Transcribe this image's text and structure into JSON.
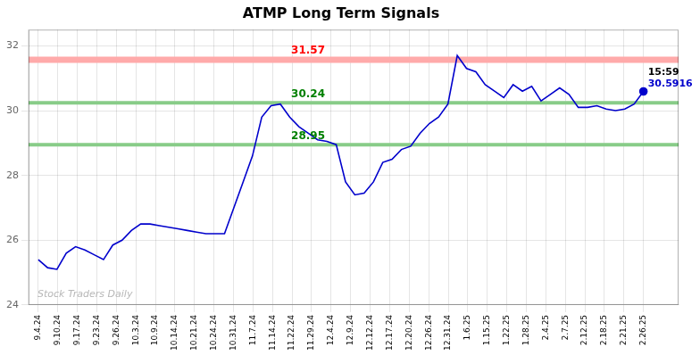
{
  "chart_data": {
    "type": "line",
    "title": "ATMP Long Term Signals",
    "x": [
      0,
      0.476923,
      0.953846,
      1.430769,
      1.907692,
      2.384615,
      2.861538,
      3.338462,
      3.815385,
      4.292308,
      4.769231,
      5.246154,
      5.723077,
      6.2,
      6.676923,
      7.153846,
      7.630769,
      8.107692,
      8.584615,
      9.061538,
      9.538462,
      10.015385,
      10.492308,
      10.969231,
      11.446154,
      11.923077,
      12.4,
      12.876923,
      13.353846,
      13.830769,
      14.307692,
      14.784615,
      15.261538,
      15.738462,
      16.215385,
      16.692308,
      17.169231,
      17.646154,
      18.123077,
      18.6,
      19.076923,
      19.553846,
      20.030769,
      20.507692,
      20.984615,
      21.461538,
      21.938462,
      22.415385,
      22.892308,
      23.369231,
      23.846154,
      24.323077,
      24.8,
      25.276923,
      25.753846,
      26.230769,
      26.707692,
      27.184615,
      27.661538,
      28.138462,
      28.615385,
      29.092308,
      29.569231,
      30.046154,
      30.523077,
      31
    ],
    "series": [
      {
        "color": "#0000cc",
        "values": [
          25.4,
          25.15,
          25.1,
          25.6,
          25.8,
          25.7,
          25.55,
          25.4,
          25.85,
          26.0,
          26.3,
          26.5,
          26.5,
          26.45,
          26.4,
          26.35,
          26.3,
          26.25,
          26.2,
          26.2,
          26.2,
          27.0,
          27.8,
          28.6,
          29.8,
          30.15,
          30.2,
          29.8,
          29.5,
          29.3,
          29.1,
          29.05,
          28.95,
          27.8,
          27.4,
          27.45,
          27.8,
          28.4,
          28.5,
          28.8,
          28.9,
          29.3,
          29.6,
          29.8,
          30.2,
          31.7,
          31.3,
          31.2,
          30.8,
          30.6,
          30.4,
          30.8,
          30.6,
          30.75,
          30.3,
          30.5,
          30.7,
          30.5,
          30.1,
          30.1,
          30.15,
          30.05,
          30.0,
          30.05,
          30.2,
          30.5916
        ]
      }
    ],
    "xlim": [
      -0.5,
      32.8
    ],
    "xticks": [
      {
        "value": 0,
        "label": "9.4.24"
      },
      {
        "value": 1,
        "label": "9.10.24"
      },
      {
        "value": 2,
        "label": "9.17.24"
      },
      {
        "value": 3,
        "label": "9.23.24"
      },
      {
        "value": 4,
        "label": "9.26.24"
      },
      {
        "value": 5,
        "label": "10.3.24"
      },
      {
        "value": 6,
        "label": "10.9.24"
      },
      {
        "value": 7,
        "label": "10.14.24"
      },
      {
        "value": 8,
        "label": "10.21.24"
      },
      {
        "value": 9,
        "label": "10.24.24"
      },
      {
        "value": 10,
        "label": "10.31.24"
      },
      {
        "value": 11,
        "label": "11.7.24"
      },
      {
        "value": 12,
        "label": "11.14.24"
      },
      {
        "value": 13,
        "label": "11.22.24"
      },
      {
        "value": 14,
        "label": "11.29.24"
      },
      {
        "value": 15,
        "label": "12.4.24"
      },
      {
        "value": 16,
        "label": "12.9.24"
      },
      {
        "value": 17,
        "label": "12.12.24"
      },
      {
        "value": 18,
        "label": "12.17.24"
      },
      {
        "value": 19,
        "label": "12.20.24"
      },
      {
        "value": 20,
        "label": "12.26.24"
      },
      {
        "value": 21,
        "label": "12.31.24"
      },
      {
        "value": 22,
        "label": "1.6.25"
      },
      {
        "value": 23,
        "label": "1.15.25"
      },
      {
        "value": 24,
        "label": "1.22.25"
      },
      {
        "value": 25,
        "label": "1.28.25"
      },
      {
        "value": 26,
        "label": "2.4.25"
      },
      {
        "value": 27,
        "label": "2.7.25"
      },
      {
        "value": 28,
        "label": "2.12.25"
      },
      {
        "value": 29,
        "label": "2.18.25"
      },
      {
        "value": 30,
        "label": "2.21.25"
      },
      {
        "value": 31,
        "label": "2.26.25"
      }
    ],
    "ylim": [
      24,
      32.5
    ],
    "yticks": [
      24,
      26,
      28,
      30,
      32
    ],
    "grid": true,
    "hlines": [
      {
        "value": 31.57,
        "label": "31.57",
        "color": "#ffaaaa",
        "label_color": "red"
      },
      {
        "value": 30.24,
        "label": "30.24",
        "color": "#88cc88",
        "label_color": "green"
      },
      {
        "value": 28.95,
        "label": "28.95",
        "color": "#88cc88",
        "label_color": "green"
      }
    ],
    "last_price": "30.5916",
    "last_time": "15:59",
    "watermark": "Stock Traders Daily"
  }
}
